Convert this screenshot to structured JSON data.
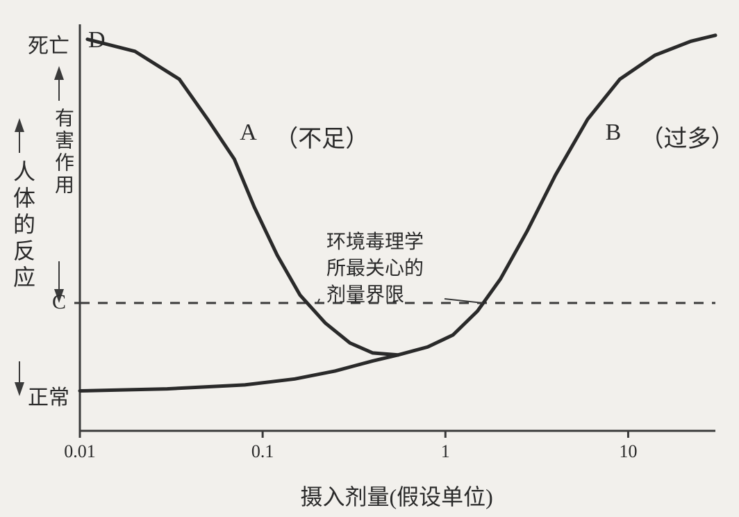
{
  "chart": {
    "type": "line",
    "background_color": "#f2f0ec",
    "stroke_color": "#2a2a2a",
    "axis_color": "#3a3a3a",
    "curve_width": 5,
    "axis_width": 3,
    "dash_pattern": "14 12",
    "xlabel": "摄入剂量(假设单位)",
    "ylabel_outer": "人体的反应",
    "ylabel_inner": "有害作用",
    "xscale": "log",
    "xlim": [
      0.01,
      30
    ],
    "ylim": [
      0,
      1
    ],
    "xticks": [
      {
        "value": 0.01,
        "label": "0.01"
      },
      {
        "value": 0.1,
        "label": "0.1"
      },
      {
        "value": 1,
        "label": "1"
      },
      {
        "value": 10,
        "label": "10"
      }
    ],
    "yticks": [
      {
        "value": 0.1,
        "label": "正常"
      },
      {
        "value": 0.32,
        "label": "C"
      },
      {
        "value": 0.98,
        "label": "死亡"
      }
    ],
    "threshold_line_y": 0.32,
    "point_labels": {
      "D": "D",
      "A": "A",
      "A_note": "（不足）",
      "B": "B",
      "B_note": "（过多）"
    },
    "central_note": {
      "line1": "环境毒理学",
      "line2": "所最关心的",
      "line3": "剂量界限"
    },
    "curve_A": [
      {
        "x": 0.011,
        "y": 0.98
      },
      {
        "x": 0.02,
        "y": 0.95
      },
      {
        "x": 0.035,
        "y": 0.88
      },
      {
        "x": 0.05,
        "y": 0.78
      },
      {
        "x": 0.07,
        "y": 0.68
      },
      {
        "x": 0.09,
        "y": 0.56
      },
      {
        "x": 0.12,
        "y": 0.44
      },
      {
        "x": 0.16,
        "y": 0.34
      },
      {
        "x": 0.22,
        "y": 0.27
      },
      {
        "x": 0.3,
        "y": 0.22
      },
      {
        "x": 0.4,
        "y": 0.195
      },
      {
        "x": 0.55,
        "y": 0.19
      }
    ],
    "curve_B": [
      {
        "x": 0.01,
        "y": 0.1
      },
      {
        "x": 0.03,
        "y": 0.105
      },
      {
        "x": 0.08,
        "y": 0.115
      },
      {
        "x": 0.15,
        "y": 0.13
      },
      {
        "x": 0.25,
        "y": 0.15
      },
      {
        "x": 0.4,
        "y": 0.175
      },
      {
        "x": 0.55,
        "y": 0.19
      },
      {
        "x": 0.8,
        "y": 0.21
      },
      {
        "x": 1.1,
        "y": 0.24
      },
      {
        "x": 1.5,
        "y": 0.3
      },
      {
        "x": 2.0,
        "y": 0.38
      },
      {
        "x": 2.8,
        "y": 0.5
      },
      {
        "x": 4.0,
        "y": 0.64
      },
      {
        "x": 6.0,
        "y": 0.78
      },
      {
        "x": 9.0,
        "y": 0.88
      },
      {
        "x": 14.0,
        "y": 0.94
      },
      {
        "x": 22.0,
        "y": 0.975
      },
      {
        "x": 30.0,
        "y": 0.99
      }
    ],
    "label_fontsize": 32,
    "tick_fontsize": 26,
    "annotation_fontsize": 30
  }
}
